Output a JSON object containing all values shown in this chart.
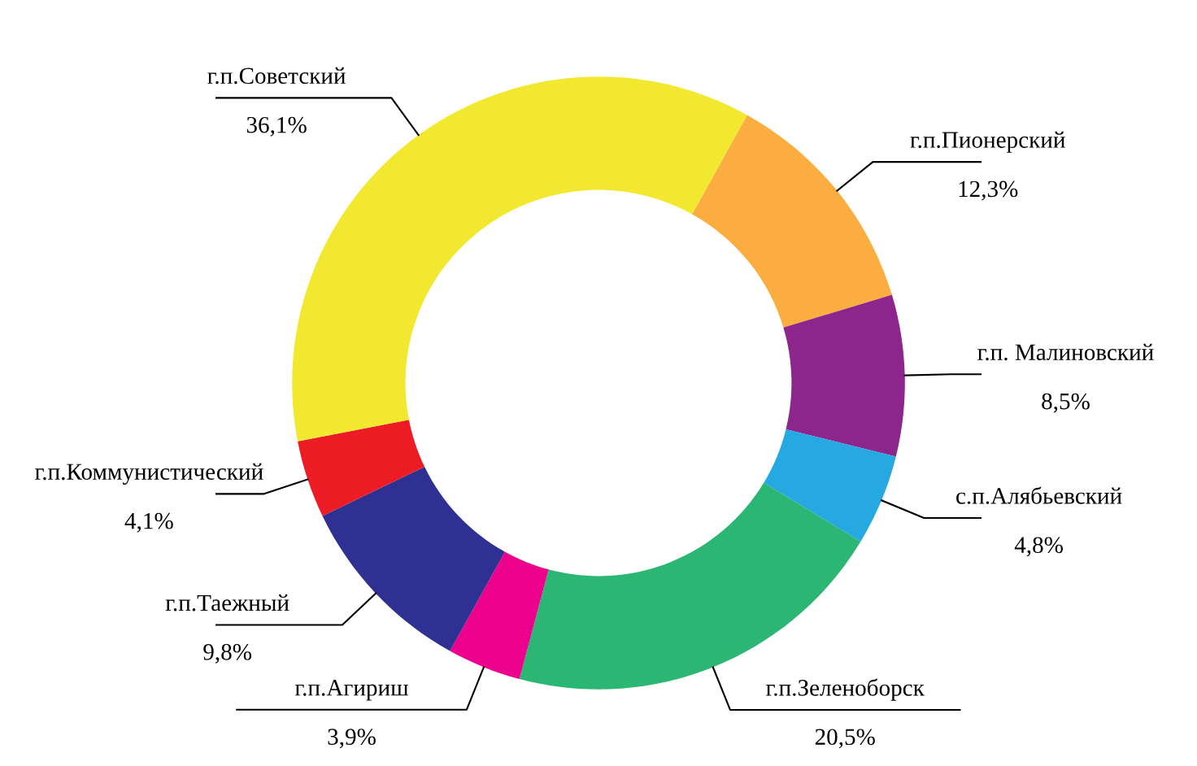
{
  "chart_data": {
    "type": "donut",
    "categories": [
      "г.п.Пионерский",
      "г.п. Малиновский",
      "с.п.Алябьевский",
      "г.п.Зеленоборск",
      "г.п.Агириш",
      "г.п.Таежный",
      "г.п.Коммунистический",
      "г.п.Советский"
    ],
    "values": [
      12.3,
      8.5,
      4.8,
      20.5,
      3.9,
      9.8,
      4.1,
      36.1
    ],
    "value_labels": [
      "12,3%",
      "8,5%",
      "4,8%",
      "20,5%",
      "3,9%",
      "9,8%",
      "4,1%",
      "36,1%"
    ],
    "colors": [
      "#fbae3f",
      "#8c268c",
      "#25a9e0",
      "#2bb673",
      "#ec008c",
      "#2e3192",
      "#ed1c24",
      "#f2e830"
    ]
  }
}
